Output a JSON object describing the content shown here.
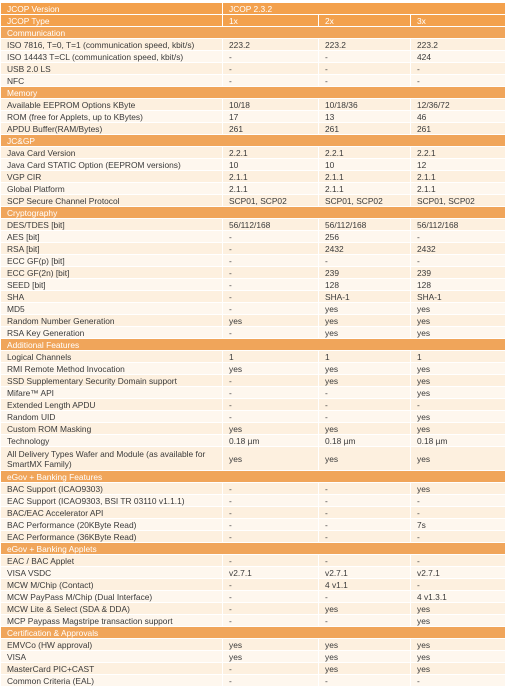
{
  "table": {
    "header": [
      [
        "JCOP Version",
        "JCOP 2.3.2"
      ],
      [
        "JCOP Type",
        "1x",
        "2x",
        "3x"
      ]
    ],
    "rows": [
      [
        "Communication"
      ],
      [
        "ISO 7816, T=0, T=1 (communication speed, kbit/s)",
        "223.2",
        "223.2",
        "223.2"
      ],
      [
        "ISO 14443 T=CL (communication speed, kbit/s)",
        "-",
        "-",
        "424"
      ],
      [
        "USB 2.0 LS",
        "-",
        "-",
        "-"
      ],
      [
        "NFC",
        "-",
        "-",
        "-"
      ],
      [
        "Memory"
      ],
      [
        "Available EEPROM Options KByte",
        "10/18",
        "10/18/36",
        "12/36/72"
      ],
      [
        "ROM (free for Applets, up to KBytes)",
        "17",
        "13",
        "46"
      ],
      [
        "APDU Buffer(RAM/Bytes)",
        "261",
        "261",
        "261"
      ],
      [
        "JC&GP"
      ],
      [
        "Java Card Version",
        "2.2.1",
        "2.2.1",
        "2.2.1"
      ],
      [
        "Java Card STATIC Option (EEPROM versions)",
        "10",
        "10",
        "12"
      ],
      [
        "VGP CIR",
        "2.1.1",
        "2.1.1",
        "2.1.1"
      ],
      [
        "Global Platform",
        "2.1.1",
        "2.1.1",
        "2.1.1"
      ],
      [
        "SCP Secure Channel Protocol",
        "SCP01, SCP02",
        "SCP01, SCP02",
        "SCP01, SCP02"
      ],
      [
        "Cryptography"
      ],
      [
        "DES/TDES [bit]",
        "56/112/168",
        "56/112/168",
        "56/112/168"
      ],
      [
        "AES [bit]",
        "-",
        "256",
        "-"
      ],
      [
        "RSA [bit]",
        "-",
        "2432",
        "2432"
      ],
      [
        "ECC GF(p) [bit]",
        "-",
        "-",
        "-"
      ],
      [
        "ECC GF(2n) [bit]",
        "-",
        "239",
        "239"
      ],
      [
        "SEED [bit]",
        "-",
        "128",
        "128"
      ],
      [
        "SHA",
        "-",
        "SHA-1",
        "SHA-1"
      ],
      [
        "MD5",
        "-",
        "yes",
        "yes"
      ],
      [
        "Random Number Generation",
        "yes",
        "yes",
        "yes"
      ],
      [
        "RSA Key Generation",
        "-",
        "yes",
        "yes"
      ],
      [
        "Additional Features"
      ],
      [
        "Logical Channels",
        "1",
        "1",
        "1"
      ],
      [
        "RMI Remote Method Invocation",
        "yes",
        "yes",
        "yes"
      ],
      [
        "SSD Supplementary Security Domain support",
        "-",
        "yes",
        "yes"
      ],
      [
        "Mifare™ API",
        "-",
        "-",
        "yes"
      ],
      [
        "Extended Length APDU",
        "-",
        "-",
        "-"
      ],
      [
        "Random UID",
        "-",
        "-",
        "yes"
      ],
      [
        "Custom ROM Masking",
        "yes",
        "yes",
        "yes"
      ],
      [
        "Technology",
        "0.18 µm",
        "0.18 µm",
        "0.18 µm"
      ],
      [
        "All Delivery Types Wafer and Module (as available for SmartMX Family)",
        "yes",
        "yes",
        "yes"
      ],
      [
        "eGov + Banking Features"
      ],
      [
        "BAC Support (ICAO9303)",
        "-",
        "-",
        "yes"
      ],
      [
        "EAC Support (ICAO9303, BSI TR 03110 v1.1.1)",
        "-",
        "-",
        "-"
      ],
      [
        "BAC/EAC Accelerator API",
        "-",
        "-",
        "-"
      ],
      [
        "BAC Performance (20KByte Read)",
        "-",
        "-",
        "7s"
      ],
      [
        "EAC Performance (36KByte Read)",
        "-",
        "-",
        "-"
      ],
      [
        "eGov + Banking Applets"
      ],
      [
        "EAC / BAC Applet",
        "-",
        "-",
        "-"
      ],
      [
        "VISA VSDC",
        "v2.7.1",
        "v2.7.1",
        "v2.7.1"
      ],
      [
        "MCW M/Chip (Contact)",
        "-",
        "4 v1.1",
        "-"
      ],
      [
        "MCW PayPass M/Chip (Dual Interface)",
        "-",
        "-",
        "4 v1.3.1"
      ],
      [
        "MCW Lite & Select (SDA & DDA)",
        "-",
        "yes",
        "yes"
      ],
      [
        "MCP Paypass Magstripe transaction support",
        "-",
        "-",
        "yes"
      ],
      [
        "Certification & Approvals"
      ],
      [
        "EMVCo (HW approval)",
        "yes",
        "yes",
        "yes"
      ],
      [
        "VISA",
        "yes",
        "yes",
        "yes"
      ],
      [
        "MasterCard PIC+CAST",
        "-",
        "yes",
        "yes"
      ],
      [
        "Common Criteria (EAL)",
        "-",
        "-",
        "-"
      ]
    ]
  }
}
